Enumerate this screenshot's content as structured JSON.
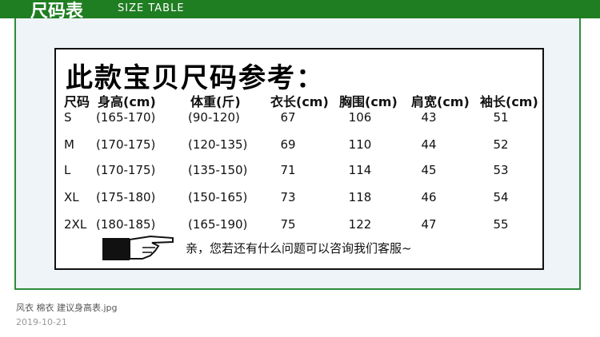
{
  "header": {
    "title": "尺码表",
    "subtitle": "SIZE TABLE"
  },
  "table": {
    "title": "此款宝贝尺码参考：",
    "columns": [
      "尺码",
      "身高(cm)",
      "体重(斤)",
      "衣长(cm)",
      "胸围(cm)",
      "肩宽(cm)",
      "袖长(cm)"
    ],
    "rows": [
      [
        "S",
        "(165-170)",
        "(90-120)",
        67,
        106,
        43,
        51
      ],
      [
        "M",
        "(170-175)",
        "(120-135)",
        69,
        110,
        44,
        52
      ],
      [
        "L",
        "(170-175)",
        "(135-150)",
        71,
        114,
        45,
        53
      ],
      [
        "XL",
        "(175-180)",
        "(150-165)",
        73,
        118,
        46,
        54
      ],
      [
        "2XL",
        "(180-185)",
        "(165-190)",
        75,
        122,
        47,
        55
      ]
    ],
    "note": "亲，您若还有什么问题可以咨询我们客服~"
  },
  "caption": {
    "filename": "风衣 棉衣 建议身高表.jpg",
    "date": "2019-10-21"
  }
}
